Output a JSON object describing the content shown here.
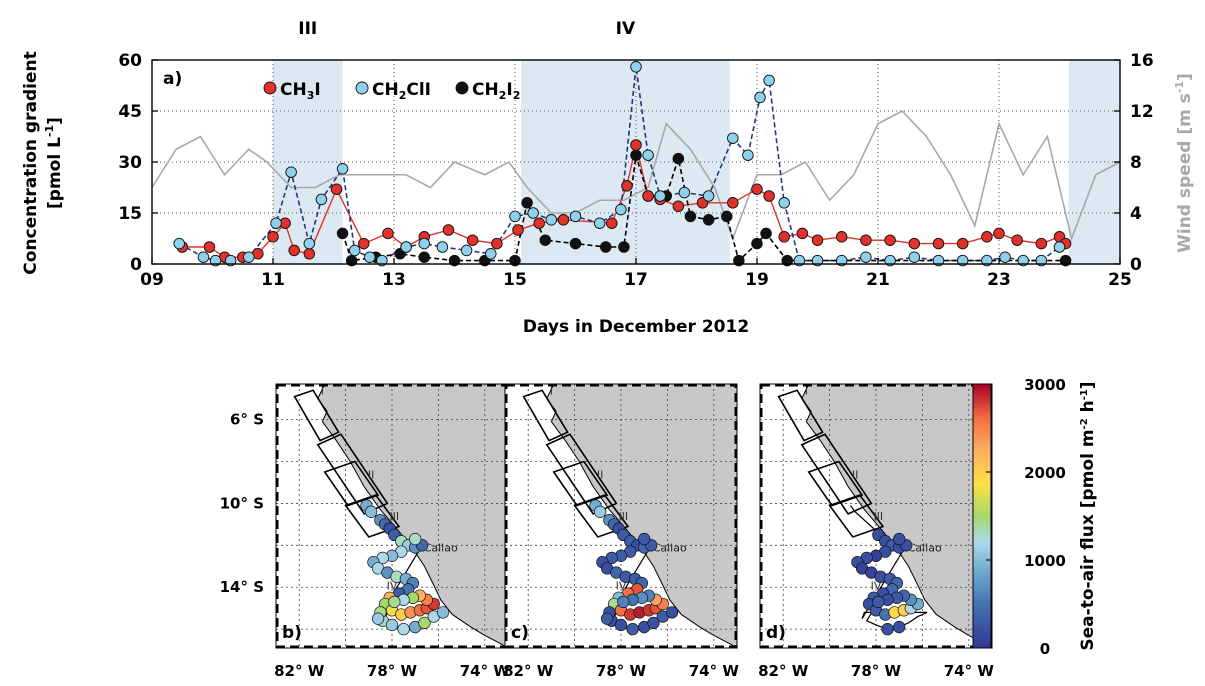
{
  "colors": {
    "ch3i": "#e0322b",
    "ch2clI": "#8fd0ec",
    "ch2i2": "#111111",
    "wind": "#a8a8a8",
    "shade": "#dce9f2",
    "land": "#c8c8c8"
  },
  "chart_data": [
    {
      "type": "line",
      "panel_label": "a)",
      "xlabel": "Days in December 2012",
      "ylabel_line1": "Concentration gradient",
      "ylabel_line2": "[pmol L",
      "ylabel_sup": "-1",
      "ylabel_close": "]",
      "y2label": "Wind speed [m s",
      "y2label_sup": "-1",
      "y2label_close": "]",
      "xlim": [
        9,
        25
      ],
      "ylim": [
        0,
        60
      ],
      "y2lim": [
        0,
        16
      ],
      "x_ticks": [
        9,
        11,
        13,
        15,
        17,
        19,
        21,
        23,
        25
      ],
      "x_tick_labels": [
        "09",
        "11",
        "13",
        "15",
        "17",
        "19",
        "21",
        "23",
        "25"
      ],
      "y_ticks": [
        0,
        15,
        30,
        45,
        60
      ],
      "y2_ticks": [
        0,
        4,
        8,
        12,
        16
      ],
      "grid": true,
      "shaded_periods": [
        {
          "label": "III",
          "x": [
            11.0,
            12.15
          ]
        },
        {
          "label": "IV",
          "x": [
            15.1,
            18.55
          ]
        },
        {
          "label": "",
          "x": [
            24.15,
            25
          ]
        }
      ],
      "legend": {
        "position": "top",
        "entries": [
          {
            "base": "CH",
            "sub1": "3",
            "rest": "I",
            "sub2": "",
            "tail": ""
          },
          {
            "base": "CH",
            "sub1": "2",
            "rest": "ClI",
            "sub2": "",
            "tail": ""
          },
          {
            "base": "CH",
            "sub1": "2",
            "rest": "I",
            "sub2": "2",
            "tail": ""
          }
        ]
      },
      "series": [
        {
          "name": "CH3I",
          "x": [
            9.5,
            9.95,
            10.2,
            10.5,
            10.75,
            11.0,
            11.2,
            11.35,
            11.6,
            12.05,
            12.5,
            12.9,
            13.2,
            13.5,
            13.9,
            14.3,
            14.7,
            15.05,
            15.4,
            15.8,
            16.6,
            16.85,
            17.0,
            17.2,
            17.4,
            17.7,
            18.1,
            18.6,
            19.0,
            19.2,
            19.45,
            19.75,
            20.0,
            20.4,
            20.8,
            21.2,
            21.6,
            22.0,
            22.4,
            22.8,
            23.0,
            23.3,
            23.7,
            24.0,
            24.1
          ],
          "values": [
            5,
            5,
            2,
            2,
            3,
            8,
            12,
            4,
            3,
            22,
            6,
            9,
            5,
            8,
            10,
            7,
            6,
            10,
            12,
            13,
            12,
            23,
            35,
            20,
            19,
            17,
            18,
            18,
            22,
            20,
            8,
            9,
            7,
            8,
            7,
            7,
            6,
            6,
            6,
            8,
            9,
            7,
            6,
            8,
            6
          ]
        },
        {
          "name": "CH2ClI",
          "x": [
            9.45,
            9.85,
            10.05,
            10.3,
            10.6,
            11.05,
            11.3,
            11.6,
            11.8,
            12.15,
            12.35,
            12.6,
            12.8,
            13.2,
            13.5,
            13.8,
            14.2,
            14.6,
            15.0,
            15.3,
            15.6,
            16.0,
            16.4,
            16.75,
            17.0,
            17.2,
            17.4,
            17.8,
            18.2,
            18.6,
            18.85,
            19.05,
            19.2,
            19.45,
            19.7,
            20.0,
            20.4,
            20.8,
            21.2,
            21.6,
            22.0,
            22.4,
            22.8,
            23.1,
            23.4,
            23.7,
            24.0
          ],
          "values": [
            6,
            2,
            1,
            1,
            2,
            12,
            27,
            6,
            19,
            28,
            4,
            2,
            1,
            5,
            6,
            5,
            4,
            3,
            14,
            15,
            13,
            14,
            12,
            16,
            58,
            32,
            20,
            21,
            20,
            37,
            32,
            49,
            54,
            18,
            1,
            1,
            1,
            2,
            1,
            2,
            1,
            1,
            1,
            2,
            1,
            1,
            5
          ]
        },
        {
          "name": "CH2I2",
          "x": [
            12.15,
            12.3,
            12.7,
            13.1,
            13.5,
            14.0,
            14.5,
            15.0,
            15.2,
            15.5,
            16.0,
            16.5,
            16.8,
            17.0,
            17.2,
            17.5,
            17.7,
            17.9,
            18.2,
            18.5,
            18.7,
            19.0,
            19.15,
            19.5,
            24.1
          ],
          "values": [
            9,
            1,
            2,
            3,
            2,
            1,
            1,
            1,
            18,
            7,
            6,
            5,
            5,
            32,
            20,
            20,
            31,
            14,
            13,
            14,
            1,
            6,
            9,
            1,
            1
          ]
        },
        {
          "name": "wind",
          "x": [
            9,
            9.4,
            9.8,
            10.2,
            10.6,
            10.9,
            11.3,
            11.7,
            12.1,
            12.4,
            12.8,
            13.2,
            13.6,
            14.0,
            14.5,
            14.9,
            15.2,
            15.6,
            16.0,
            16.4,
            16.8,
            17.2,
            17.5,
            17.9,
            18.3,
            18.6,
            19.0,
            19.4,
            19.8,
            20.2,
            20.6,
            21.0,
            21.4,
            21.8,
            22.2,
            22.6,
            23.0,
            23.4,
            23.8,
            24.2,
            24.6,
            25
          ],
          "values": [
            6,
            9,
            10,
            7,
            9,
            8,
            6,
            6,
            7,
            7,
            7,
            7,
            6,
            8,
            7,
            8,
            6,
            4,
            4,
            5,
            5,
            6,
            11,
            9,
            6,
            2,
            7,
            7,
            8,
            5,
            7,
            11,
            12,
            10,
            7,
            3,
            11,
            7,
            10,
            2,
            7,
            8
          ]
        }
      ]
    },
    {
      "type": "scatter",
      "subtype": "map",
      "panels": [
        "b)",
        "c)",
        "d)"
      ],
      "lat_ticks": [
        "6° S",
        "10° S",
        "14° S"
      ],
      "lon_ticks": [
        "82° W",
        "78° W",
        "74° W"
      ],
      "city": "Callao",
      "regions": [
        "I",
        "II",
        "III",
        "IV"
      ],
      "colorbar": {
        "label": "Sea-to-air flux [pmol m",
        "sup1": "-2",
        "mid": " h",
        "sup2": "-1",
        "close": "]",
        "ticks": [
          0,
          1000,
          2000,
          3000
        ],
        "range": [
          0,
          3000
        ]
      },
      "point_lonlat": [
        [
          -79.1,
          -10.1
        ],
        [
          -78.9,
          -10.4
        ],
        [
          -78.5,
          -10.8
        ],
        [
          -78.3,
          -11.0
        ],
        [
          -78.1,
          -11.2
        ],
        [
          -77.9,
          -11.5
        ],
        [
          -77.6,
          -11.8
        ],
        [
          -77.3,
          -12.0
        ],
        [
          -77.0,
          -12.1
        ],
        [
          -77.6,
          -12.3
        ],
        [
          -78.0,
          -12.5
        ],
        [
          -78.4,
          -12.6
        ],
        [
          -78.8,
          -12.8
        ],
        [
          -78.6,
          -13.1
        ],
        [
          -78.2,
          -13.3
        ],
        [
          -77.8,
          -13.5
        ],
        [
          -77.4,
          -13.6
        ],
        [
          -77.1,
          -13.8
        ],
        [
          -77.3,
          -14.1
        ],
        [
          -77.7,
          -14.3
        ],
        [
          -78.1,
          -14.5
        ],
        [
          -78.3,
          -14.8
        ],
        [
          -78.0,
          -15.1
        ],
        [
          -77.6,
          -15.3
        ],
        [
          -77.2,
          -15.2
        ],
        [
          -76.8,
          -15.1
        ],
        [
          -76.5,
          -15.0
        ],
        [
          -76.2,
          -14.8
        ],
        [
          -76.5,
          -14.6
        ],
        [
          -76.8,
          -14.4
        ],
        [
          -77.1,
          -14.5
        ],
        [
          -77.5,
          -14.6
        ],
        [
          -77.9,
          -14.7
        ],
        [
          -78.4,
          -15.6
        ],
        [
          -78.0,
          -15.8
        ],
        [
          -77.5,
          -16.0
        ],
        [
          -77.0,
          -15.9
        ],
        [
          -76.6,
          -15.7
        ],
        [
          -76.2,
          -15.4
        ],
        [
          -75.8,
          -15.2
        ],
        [
          -78.5,
          -15.2
        ],
        [
          -78.6,
          -15.5
        ],
        [
          -76.7,
          -12.0
        ],
        [
          -77.0,
          -11.7
        ]
      ],
      "fluxes": {
        "b": [
          900,
          1000,
          700,
          400,
          200,
          300,
          1300,
          1100,
          700,
          1200,
          1000,
          1200,
          900,
          1200,
          700,
          1300,
          900,
          600,
          500,
          300,
          2200,
          1500,
          1800,
          2000,
          2400,
          2600,
          2700,
          2800,
          2500,
          2200,
          1500,
          1200,
          1400,
          1300,
          1100,
          1200,
          900,
          1500,
          1200,
          1000,
          1400,
          1100,
          400,
          1300
        ],
        "c": [
          900,
          1100,
          700,
          400,
          200,
          300,
          300,
          200,
          400,
          300,
          300,
          300,
          200,
          200,
          400,
          300,
          300,
          400,
          2700,
          2600,
          1000,
          1400,
          2600,
          2800,
          2900,
          2800,
          2700,
          2500,
          2300,
          600,
          700,
          500,
          600,
          200,
          200,
          300,
          200,
          200,
          300,
          200,
          200,
          300,
          300,
          300
        ],
        "d": [
          null,
          null,
          null,
          null,
          null,
          200,
          200,
          300,
          200,
          200,
          100,
          200,
          200,
          100,
          100,
          200,
          300,
          400,
          400,
          200,
          300,
          200,
          300,
          500,
          1900,
          2000,
          1200,
          900,
          700,
          400,
          300,
          200,
          300,
          null,
          null,
          200,
          200,
          null,
          null,
          null,
          null,
          null,
          200,
          200
        ]
      }
    }
  ]
}
